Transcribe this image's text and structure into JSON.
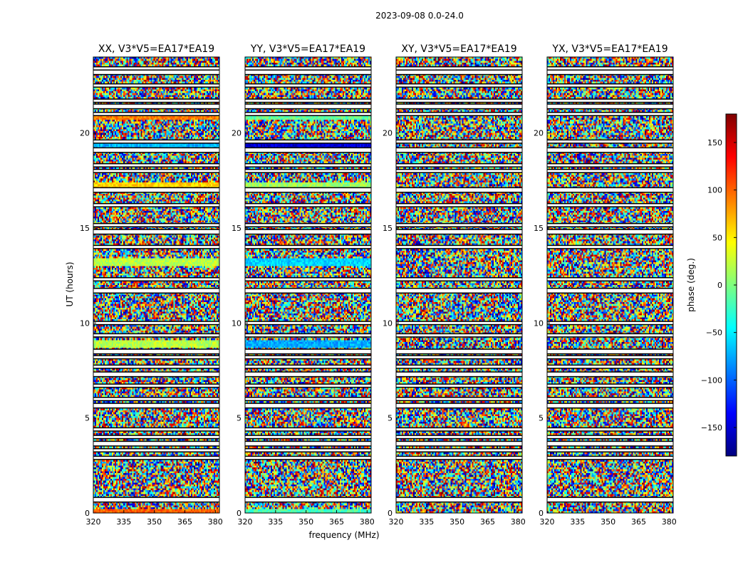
{
  "figure_title": "2023-09-08 0.0-24.0",
  "shared_xlabel": "frequency (MHz)",
  "shared_ylabel": "UT (hours)",
  "colorbar": {
    "label": "phase (deg.)",
    "range": [
      -180,
      180
    ],
    "ticks": [
      150,
      100,
      50,
      0,
      -50,
      -100,
      -150
    ],
    "tick_labels": [
      "150",
      "100",
      "50",
      "0",
      "−50",
      "−100",
      "−150"
    ],
    "colormap": [
      "#00007f",
      "#0000ff",
      "#007fff",
      "#00ffff",
      "#7fff7f",
      "#ffff00",
      "#ff7f00",
      "#ff0000",
      "#7f0000"
    ]
  },
  "chart_data": [
    {
      "type": "heatmap",
      "title": "XX, V3*V5=EA17*EA19",
      "polarization": "XX",
      "xlabel": "frequency (MHz)",
      "ylabel": "UT (hours)",
      "xlim": [
        320,
        382
      ],
      "ylim": [
        0,
        24
      ],
      "xticks": [
        320,
        335,
        350,
        365,
        380
      ],
      "yticks": [
        0,
        5,
        10,
        15,
        20
      ],
      "value": "phase (deg.)",
      "coherent_bands": [
        {
          "ut": 0.05,
          "phase": 100
        },
        {
          "ut": 8.9,
          "phase": 20
        },
        {
          "ut": 13.2,
          "phase": 20
        },
        {
          "ut": 17.2,
          "phase": 60
        },
        {
          "ut": 19.3,
          "phase": -70
        },
        {
          "ut": 20.9,
          "phase": 90
        }
      ]
    },
    {
      "type": "heatmap",
      "title": "YY, V3*V5=EA17*EA19",
      "polarization": "YY",
      "xlabel": "frequency (MHz)",
      "ylabel": "UT (hours)",
      "xlim": [
        320,
        382
      ],
      "ylim": [
        0,
        24
      ],
      "xticks": [
        320,
        335,
        350,
        365,
        380
      ],
      "yticks": [
        0,
        5,
        10,
        15,
        20
      ],
      "value": "phase (deg.)",
      "coherent_bands": [
        {
          "ut": 0.05,
          "phase": -20
        },
        {
          "ut": 8.9,
          "phase": -75
        },
        {
          "ut": 13.2,
          "phase": -60
        },
        {
          "ut": 17.2,
          "phase": 10
        },
        {
          "ut": 19.3,
          "phase": -150
        },
        {
          "ut": 20.9,
          "phase": -10
        }
      ]
    },
    {
      "type": "heatmap",
      "title": "XY, V3*V5=EA17*EA19",
      "polarization": "XY",
      "xlabel": "",
      "ylabel": "",
      "xlim": [
        320,
        382
      ],
      "ylim": [
        0,
        24
      ],
      "xticks": [
        320,
        335,
        350,
        365,
        380
      ],
      "yticks": [
        0,
        5,
        10,
        15,
        20
      ],
      "value": "phase (deg.)",
      "coherent_bands": []
    },
    {
      "type": "heatmap",
      "title": "YX, V3*V5=EA17*EA19",
      "polarization": "YX",
      "xlabel": "",
      "ylabel": "",
      "xlim": [
        320,
        382
      ],
      "ylim": [
        0,
        24
      ],
      "xticks": [
        320,
        335,
        350,
        365,
        380
      ],
      "yticks": [
        0,
        5,
        10,
        15,
        20
      ],
      "value": "phase (deg.)",
      "coherent_bands": []
    }
  ],
  "flagged_ut_hours": [
    0.7,
    2.9,
    3.3,
    3.65,
    4.0,
    4.4,
    5.65,
    6.0,
    6.7,
    7.3,
    7.7,
    8.2,
    8.5,
    9.35,
    10.0,
    11.7,
    12.3,
    14.0,
    14.8,
    15.15,
    16.2,
    17.0,
    18.0,
    18.3,
    19.1,
    19.55,
    21.0,
    21.4,
    21.7,
    22.5,
    23.2,
    23.4
  ]
}
